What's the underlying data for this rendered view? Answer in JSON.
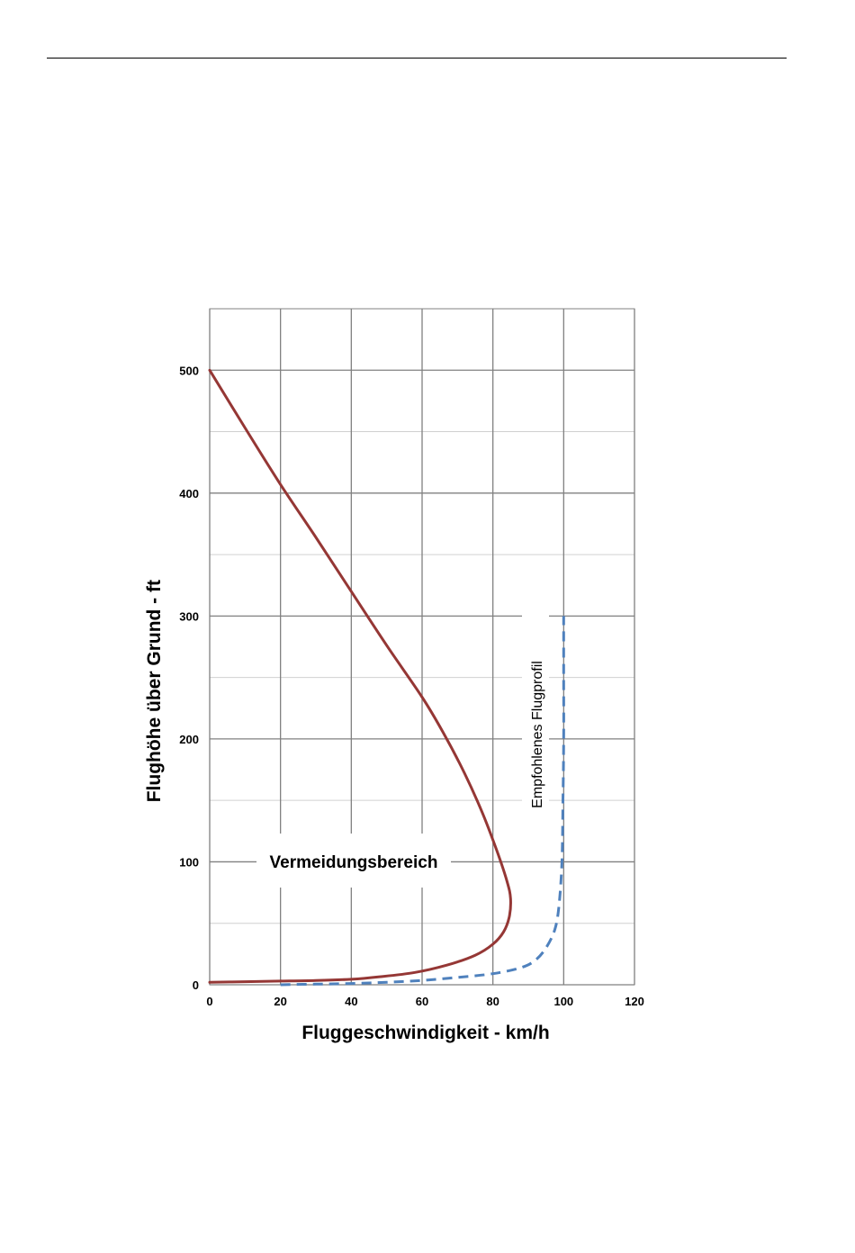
{
  "chart_data": {
    "type": "line",
    "xlabel": "Fluggeschwindigkeit  - km/h",
    "ylabel": "Flughöhe über Grund - ft",
    "xlim": [
      0,
      120
    ],
    "ylim": [
      0,
      550
    ],
    "x_ticks": [
      "0",
      "20",
      "40",
      "60",
      "80",
      "100",
      "120"
    ],
    "y_ticks": [
      "0",
      "100",
      "200",
      "300",
      "400",
      "500"
    ],
    "x_major_grid": [
      0,
      20,
      40,
      60,
      80,
      100,
      120
    ],
    "y_major_grid": [
      0,
      100,
      200,
      300,
      400,
      500
    ],
    "y_minor_grid": [
      50,
      150,
      250,
      350,
      450,
      550
    ],
    "grid": true,
    "colors": {
      "avoidance_curve": "#953735",
      "recommended_profile": "#4F81BD",
      "grid_major": "#808080",
      "grid_minor": "#d0d0d0"
    },
    "series": [
      {
        "style": "solid",
        "points": [
          [
            0,
            500
          ],
          [
            10,
            453
          ],
          [
            20,
            407
          ],
          [
            30,
            364
          ],
          [
            40,
            320
          ],
          [
            50,
            276
          ],
          [
            60,
            234
          ],
          [
            66,
            205
          ],
          [
            72,
            172
          ],
          [
            77,
            140
          ],
          [
            81,
            110
          ],
          [
            84,
            84
          ],
          [
            85,
            70
          ],
          [
            84.6,
            55
          ],
          [
            83,
            43
          ],
          [
            80,
            33
          ],
          [
            75,
            24
          ],
          [
            67,
            16
          ],
          [
            58,
            10
          ],
          [
            48,
            6.5
          ],
          [
            40,
            4.5
          ],
          [
            30,
            3.5
          ],
          [
            20,
            3
          ],
          [
            10,
            2.5
          ],
          [
            0,
            2
          ]
        ]
      },
      {
        "style": "dashed",
        "points": [
          [
            20,
            0
          ],
          [
            30,
            0.5
          ],
          [
            40,
            1
          ],
          [
            50,
            2
          ],
          [
            60,
            3.5
          ],
          [
            70,
            6
          ],
          [
            80,
            9
          ],
          [
            88,
            14
          ],
          [
            92,
            20
          ],
          [
            95,
            30
          ],
          [
            97.5,
            45
          ],
          [
            98.7,
            65
          ],
          [
            99.5,
            100
          ],
          [
            99.8,
            150
          ],
          [
            100,
            200
          ],
          [
            100,
            250
          ],
          [
            100,
            300
          ]
        ]
      }
    ],
    "annotations": {
      "avoidance_area": "Vermeidungsbereich",
      "recommended_profile": "Empfohlenes Flugprofil"
    }
  }
}
